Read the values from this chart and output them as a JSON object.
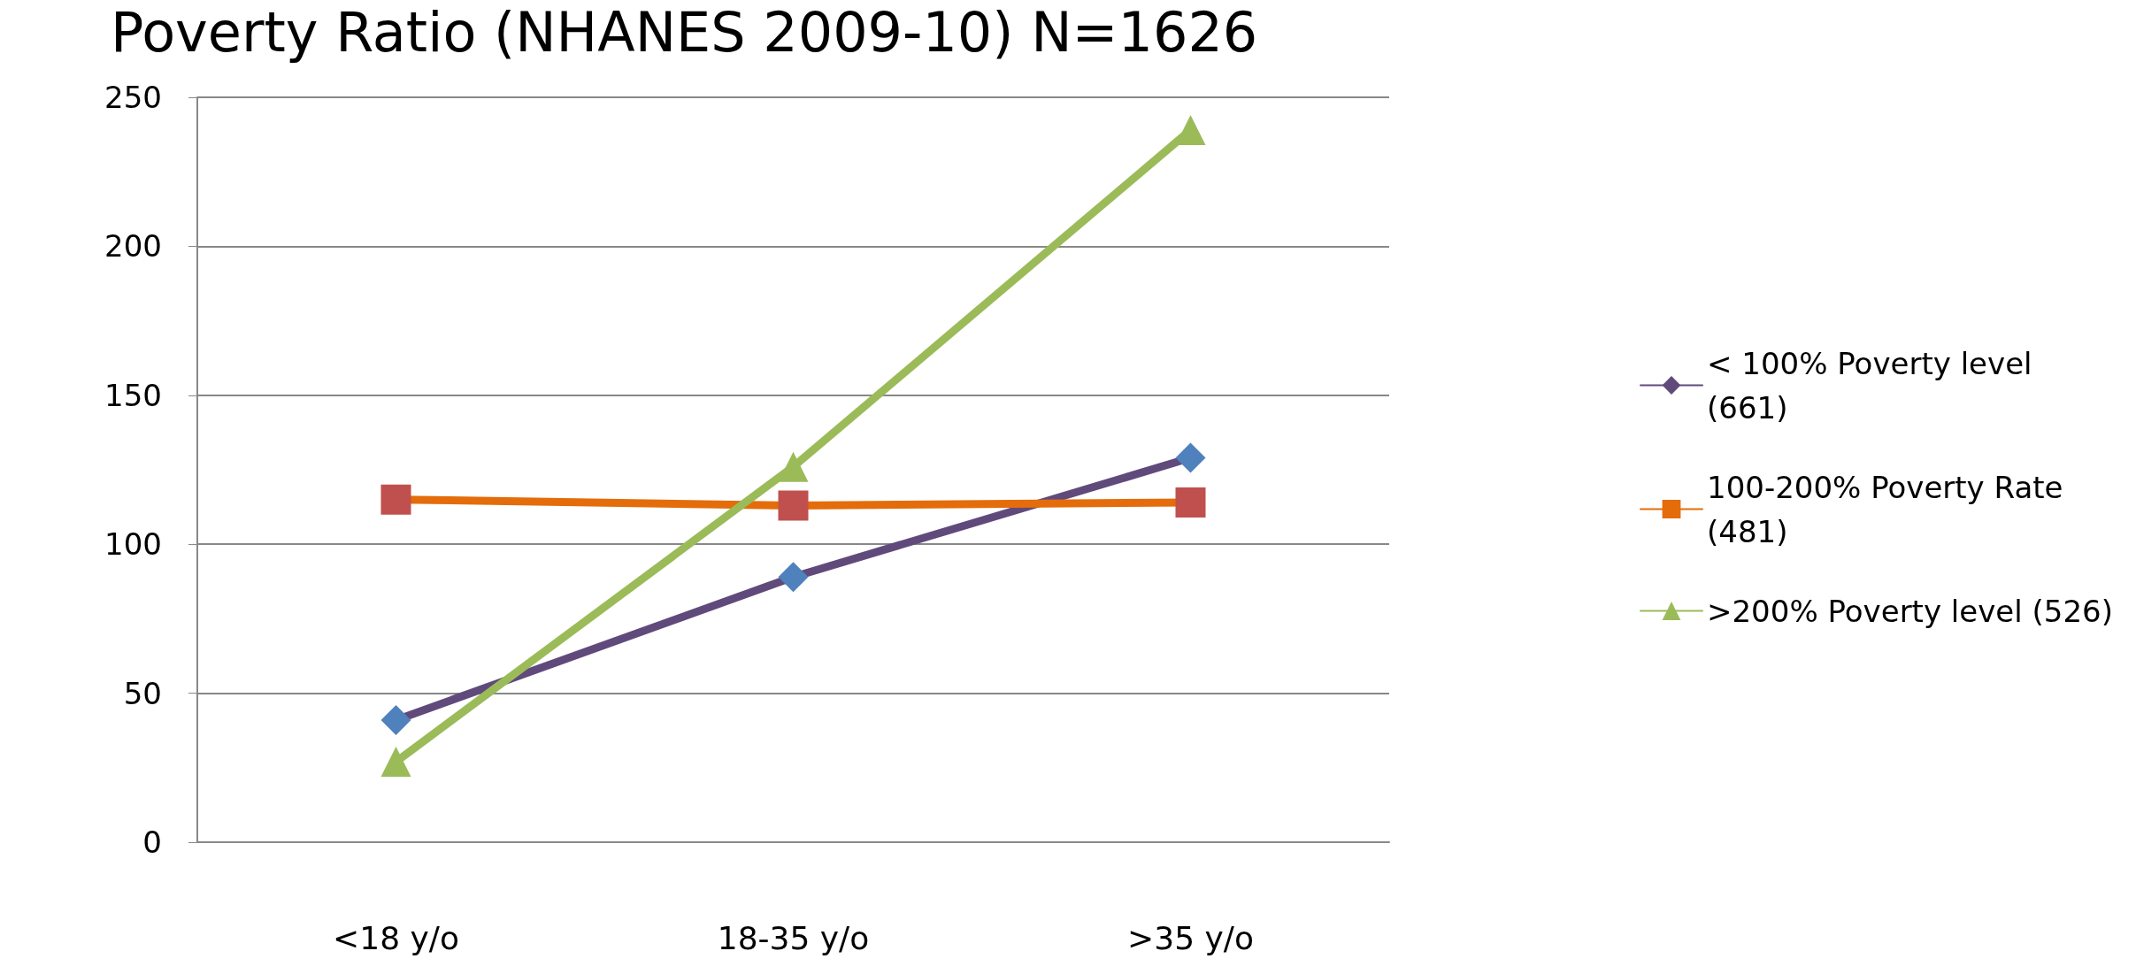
{
  "chart_data": {
    "type": "line",
    "title": "Poverty Ratio (NHANES 2009-10) N=1626",
    "categories": [
      "<18 y/o",
      "18-35 y/o",
      ">35 y/o"
    ],
    "series": [
      {
        "name": "< 100% Poverty level (661)",
        "color": "#604a7b",
        "marker": "diamond",
        "colors": [
          "#4f81bd",
          "#4f81bd",
          "#4f81bd"
        ],
        "values": [
          41,
          89,
          129
        ]
      },
      {
        "name": "100-200% Poverty Rate (481)",
        "color": "#e46c0a",
        "marker": "square",
        "colors": [
          "#c0504d",
          "#c0504d",
          "#c0504d"
        ],
        "values": [
          115,
          113,
          114
        ]
      },
      {
        "name": ">200% Poverty level (526)",
        "color": "#9bbb59",
        "marker": "triangle",
        "values": [
          27,
          126,
          239
        ]
      }
    ],
    "ylim": [
      0,
      250
    ],
    "yticks": [
      0,
      50,
      100,
      150,
      200,
      250
    ],
    "grid": "y",
    "legend": "right"
  }
}
